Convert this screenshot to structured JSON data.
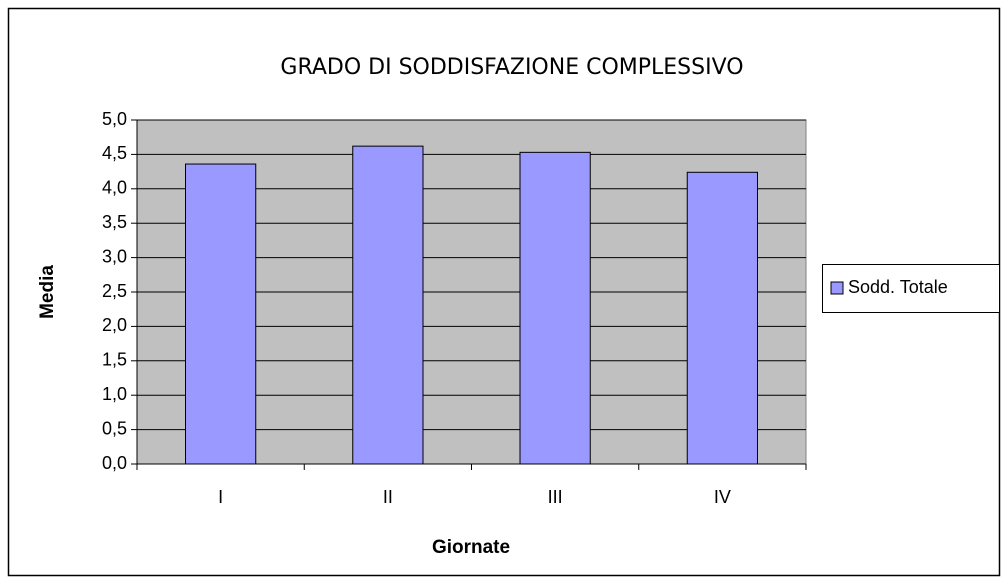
{
  "chart_data": {
    "type": "bar",
    "title": "GRADO DI SODDISFAZIONE COMPLESSIVO",
    "x_label": "Giornate",
    "y_label": "Media",
    "categories": [
      "I",
      "II",
      "III",
      "IV"
    ],
    "series": [
      {
        "name": "Sodd. Totale",
        "color": "#9999ff",
        "values": [
          4.36,
          4.62,
          4.53,
          4.24
        ]
      }
    ],
    "ylim": [
      0,
      5
    ],
    "yticks": [
      {
        "value": 0,
        "label": "0,0"
      },
      {
        "value": 0.5,
        "label": "0,5"
      },
      {
        "value": 1,
        "label": "1,0"
      },
      {
        "value": 1.5,
        "label": "1,5"
      },
      {
        "value": 2,
        "label": "2,0"
      },
      {
        "value": 2.5,
        "label": "2,5"
      },
      {
        "value": 3,
        "label": "3,0"
      },
      {
        "value": 3.5,
        "label": "3,5"
      },
      {
        "value": 4,
        "label": "4,0"
      },
      {
        "value": 4.5,
        "label": "4,5"
      },
      {
        "value": 5,
        "label": "5,0"
      }
    ],
    "grid": true,
    "legend": "right",
    "plot_background": "#c0c0c0"
  }
}
